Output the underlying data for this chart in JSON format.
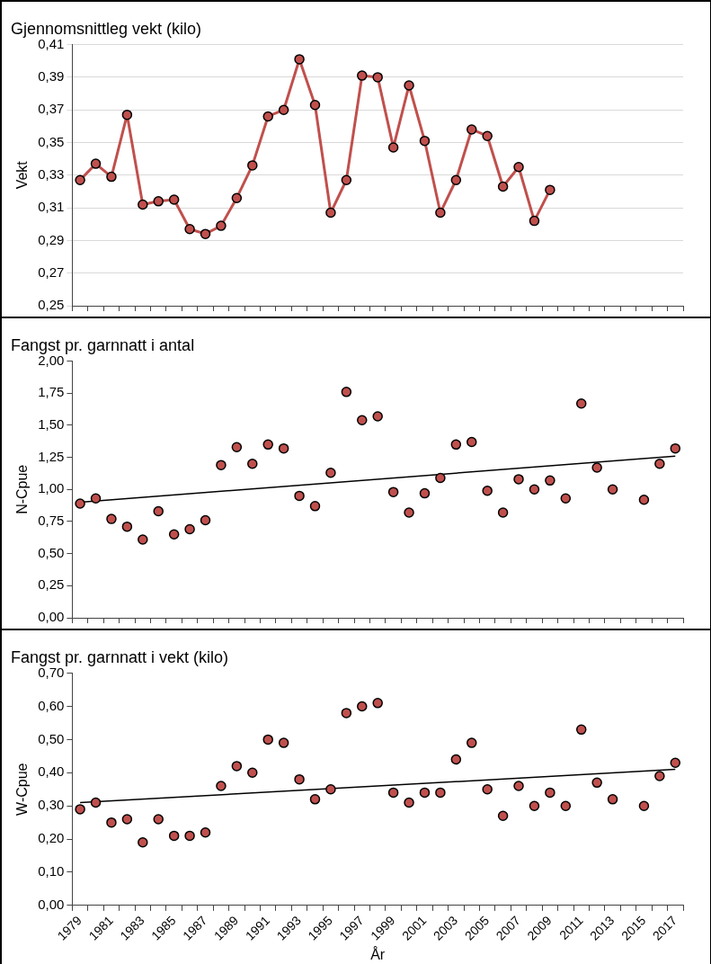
{
  "chart_data": [
    {
      "type": "line",
      "title": "Gjennomsnittleg vekt (kilo)",
      "ylabel": "Vekt",
      "categories": [
        "1979",
        null,
        "1981",
        null,
        "1983",
        null,
        "1985",
        null,
        "1987",
        null,
        "1989",
        null,
        "1991",
        null,
        "1993",
        null,
        "1995",
        null,
        "1997",
        null,
        "1999",
        null,
        "2001",
        null,
        "2003",
        null,
        "2005",
        null,
        "2007",
        null,
        "2009",
        null,
        "2011",
        null,
        "2013",
        null,
        "2015",
        null,
        "2017"
      ],
      "series": [
        {
          "color": "#c0504d",
          "values": [
            0.327,
            0.337,
            0.329,
            0.367,
            0.312,
            0.314,
            0.315,
            0.297,
            0.294,
            0.299,
            0.316,
            0.336,
            0.366,
            0.37,
            0.401,
            0.373,
            0.307,
            0.327,
            0.391,
            0.39,
            0.347,
            0.385,
            0.351,
            0.307,
            0.327,
            0.358,
            0.354,
            0.323,
            0.335,
            0.302,
            0.321,
            null,
            null,
            null,
            null,
            null,
            null,
            null,
            null
          ]
        }
      ],
      "ylim": [
        0.25,
        0.41
      ],
      "yticks": [
        {
          "value": 0.25,
          "label": "0,25"
        },
        {
          "value": 0.27,
          "label": "0,27"
        },
        {
          "value": 0.29,
          "label": "0,29"
        },
        {
          "value": 0.31,
          "label": "0,31"
        },
        {
          "value": 0.33,
          "label": "0,33"
        },
        {
          "value": 0.35,
          "label": "0,35"
        },
        {
          "value": 0.37,
          "label": "0,37"
        },
        {
          "value": 0.39,
          "label": "0,39"
        },
        {
          "value": 0.41,
          "label": "0,41"
        }
      ],
      "grid": "y",
      "legend": false,
      "marker": "circle",
      "tick_labels": "y"
    },
    {
      "type": "scatter",
      "title": "Fangst pr. garnnatt i antal",
      "ylabel": "N-Cpue",
      "categories": [
        "1979",
        null,
        "1981",
        null,
        "1983",
        null,
        "1985",
        null,
        "1987",
        null,
        "1989",
        null,
        "1991",
        null,
        "1993",
        null,
        "1995",
        null,
        "1997",
        null,
        "1999",
        null,
        "2001",
        null,
        "2003",
        null,
        "2005",
        null,
        "2007",
        null,
        "2009",
        null,
        "2011",
        null,
        "2013",
        null,
        "2015",
        null,
        "2017"
      ],
      "series": [
        {
          "color": "#c0504d",
          "values": [
            0.89,
            0.93,
            0.77,
            0.71,
            0.61,
            0.83,
            0.65,
            0.69,
            0.76,
            1.19,
            1.33,
            1.2,
            1.35,
            1.32,
            0.95,
            0.87,
            1.13,
            1.76,
            1.54,
            1.57,
            0.98,
            0.82,
            0.97,
            1.09,
            1.35,
            1.37,
            0.99,
            0.82,
            1.08,
            1.0,
            1.07,
            0.93,
            1.67,
            1.17,
            1.0,
            null,
            0.92,
            1.2,
            1.32
          ]
        },
        {
          "type": "line",
          "color": "#000000",
          "marker": "none",
          "values": [
            0.9,
            null,
            null,
            null,
            null,
            null,
            null,
            null,
            null,
            null,
            null,
            null,
            null,
            null,
            null,
            null,
            null,
            null,
            null,
            null,
            null,
            null,
            null,
            null,
            null,
            null,
            null,
            null,
            null,
            null,
            null,
            null,
            null,
            null,
            null,
            null,
            null,
            null,
            1.26
          ]
        }
      ],
      "ylim": [
        0,
        2
      ],
      "yticks": [
        {
          "value": 0,
          "label": "0,00"
        },
        {
          "value": 0.25,
          "label": "0,25"
        },
        {
          "value": 0.5,
          "label": "0,50"
        },
        {
          "value": 0.75,
          "label": "0,75"
        },
        {
          "value": 1,
          "label": "1,00"
        },
        {
          "value": 1.25,
          "label": "1,25"
        },
        {
          "value": 1.5,
          "label": "1,50"
        },
        {
          "value": 1.75,
          "label": "1,75"
        },
        {
          "value": 2,
          "label": "2,00"
        }
      ],
      "grid": false,
      "legend": false,
      "marker": "circle",
      "tick_labels": "y"
    },
    {
      "type": "scatter",
      "title": "Fangst pr. garnnatt i vekt (kilo)",
      "ylabel": "W-Cpue",
      "xlabel": "År",
      "categories": [
        "1979",
        null,
        "1981",
        null,
        "1983",
        null,
        "1985",
        null,
        "1987",
        null,
        "1989",
        null,
        "1991",
        null,
        "1993",
        null,
        "1995",
        null,
        "1997",
        null,
        "1999",
        null,
        "2001",
        null,
        "2003",
        null,
        "2005",
        null,
        "2007",
        null,
        "2009",
        null,
        "2011",
        null,
        "2013",
        null,
        "2015",
        null,
        "2017"
      ],
      "series": [
        {
          "color": "#c0504d",
          "values": [
            0.29,
            0.31,
            0.25,
            0.26,
            0.19,
            0.26,
            0.21,
            0.21,
            0.22,
            0.36,
            0.42,
            0.4,
            0.5,
            0.49,
            0.38,
            0.32,
            0.35,
            0.58,
            0.6,
            0.61,
            0.34,
            0.31,
            0.34,
            0.34,
            0.44,
            0.49,
            0.35,
            0.27,
            0.36,
            0.3,
            0.34,
            0.3,
            0.53,
            0.37,
            0.32,
            null,
            0.3,
            0.39,
            0.43
          ]
        },
        {
          "type": "line",
          "color": "#000000",
          "marker": "none",
          "values": [
            0.31,
            null,
            null,
            null,
            null,
            null,
            null,
            null,
            null,
            null,
            null,
            null,
            null,
            null,
            null,
            null,
            null,
            null,
            null,
            null,
            null,
            null,
            null,
            null,
            null,
            null,
            null,
            null,
            null,
            null,
            null,
            null,
            null,
            null,
            null,
            null,
            null,
            null,
            0.41
          ]
        }
      ],
      "ylim": [
        0,
        0.7
      ],
      "yticks": [
        {
          "value": 0,
          "label": "0,00"
        },
        {
          "value": 0.1,
          "label": "0,10"
        },
        {
          "value": 0.2,
          "label": "0,20"
        },
        {
          "value": 0.3,
          "label": "0,30"
        },
        {
          "value": 0.4,
          "label": "0,40"
        },
        {
          "value": 0.5,
          "label": "0,50"
        },
        {
          "value": 0.6,
          "label": "0,60"
        },
        {
          "value": 0.7,
          "label": "0,70"
        }
      ],
      "grid": false,
      "legend": false,
      "marker": "circle"
    }
  ]
}
